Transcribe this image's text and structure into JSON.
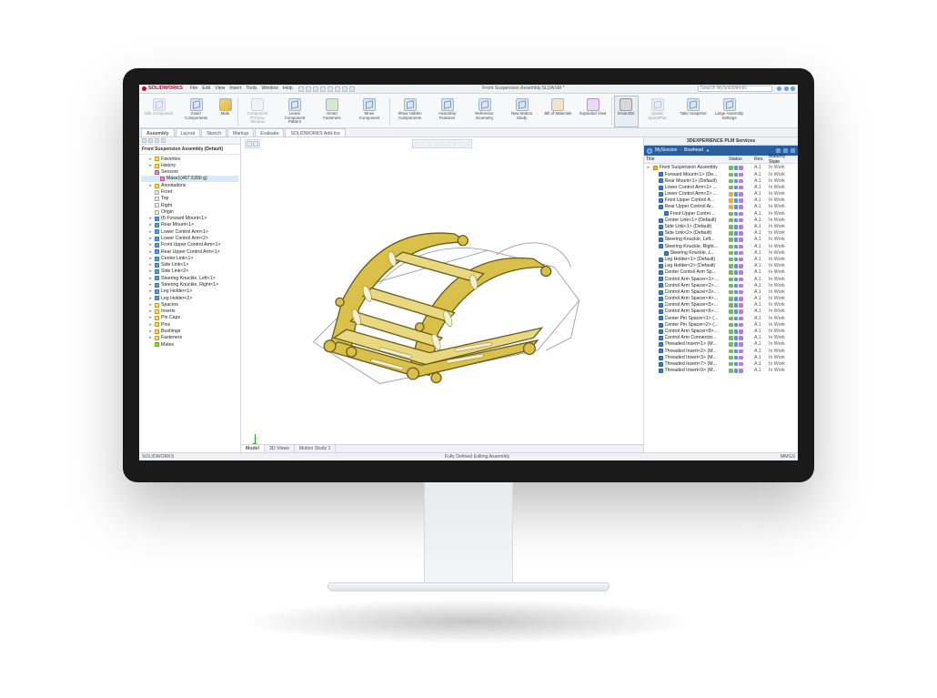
{
  "app": {
    "brand": "SOLIDWORKS",
    "document_title": "Front Suspension Assembly.SLDASM *",
    "search_placeholder": "Search MySolidWorks"
  },
  "menu": [
    "File",
    "Edit",
    "View",
    "Insert",
    "Tools",
    "Window",
    "Help"
  ],
  "ribbon": [
    {
      "label": "Edit Component",
      "icon": "cube",
      "disabled": true
    },
    {
      "label": "Insert Components",
      "icon": "cube"
    },
    {
      "label": "Mate",
      "icon": "mate"
    },
    {
      "label": "Component Preview Window",
      "icon": "preview",
      "disabled": true
    },
    {
      "label": "Linear Component Pattern",
      "icon": "cube"
    },
    {
      "label": "Smart Fasteners",
      "icon": "fastener"
    },
    {
      "label": "Move Component",
      "icon": "cube"
    },
    {
      "label": "Show Hidden Components",
      "icon": "cube"
    },
    {
      "label": "Assembly Features",
      "icon": "cube"
    },
    {
      "label": "Reference Geometry",
      "icon": "cube"
    },
    {
      "label": "New Motion Study",
      "icon": "cube"
    },
    {
      "label": "Bill of Materials",
      "icon": "bom"
    },
    {
      "label": "Exploded View",
      "icon": "exploded"
    },
    {
      "label": "Instant3D",
      "icon": "instant",
      "active": true
    },
    {
      "label": "Update SpeedPak",
      "icon": "cube",
      "disabled": true
    },
    {
      "label": "Take Snapshot",
      "icon": "cube"
    },
    {
      "label": "Large Assembly Settings",
      "icon": "cube"
    }
  ],
  "tabs": [
    "Assembly",
    "Layout",
    "Sketch",
    "Markup",
    "Evaluate",
    "SOLIDWORKS Add-Ins"
  ],
  "tabs_active": 0,
  "tree": {
    "root": "Front Suspension Assembly (Default)",
    "items": [
      {
        "d": 1,
        "ico": "folder",
        "label": "Favorites"
      },
      {
        "d": 1,
        "ico": "folder",
        "label": "History"
      },
      {
        "d": 1,
        "ico": "sensor",
        "label": "Sensors"
      },
      {
        "d": 2,
        "ico": "sensor",
        "label": "Mass1(467.5390 g)",
        "sel": true
      },
      {
        "d": 1,
        "ico": "folder",
        "label": "Annotations"
      },
      {
        "d": 1,
        "ico": "plane",
        "label": "Front"
      },
      {
        "d": 1,
        "ico": "plane",
        "label": "Top"
      },
      {
        "d": 1,
        "ico": "plane",
        "label": "Right"
      },
      {
        "d": 1,
        "ico": "plane",
        "label": "Origin"
      },
      {
        "d": 1,
        "ico": "part",
        "label": "(f) Forward Mount<1>"
      },
      {
        "d": 1,
        "ico": "part",
        "label": "Rear Mount<1>"
      },
      {
        "d": 1,
        "ico": "part",
        "label": "Lower Control Arm<1>"
      },
      {
        "d": 1,
        "ico": "part",
        "label": "Lower Control Arm<2>"
      },
      {
        "d": 1,
        "ico": "part",
        "label": "Front Upper Control Arm<1>"
      },
      {
        "d": 1,
        "ico": "part",
        "label": "Rear Upper Control Arm<1>"
      },
      {
        "d": 1,
        "ico": "part",
        "label": "Center Link<1>"
      },
      {
        "d": 1,
        "ico": "part",
        "label": "Side Link<1>"
      },
      {
        "d": 1,
        "ico": "part",
        "label": "Side Link<2>"
      },
      {
        "d": 1,
        "ico": "part",
        "label": "Steering Knuckle, Left<1>"
      },
      {
        "d": 1,
        "ico": "part",
        "label": "Steering Knuckle, Right<1>"
      },
      {
        "d": 1,
        "ico": "part",
        "label": "Leg Holder<1>"
      },
      {
        "d": 1,
        "ico": "part",
        "label": "Leg Holder<2>"
      },
      {
        "d": 1,
        "ico": "folder",
        "label": "Spacers"
      },
      {
        "d": 1,
        "ico": "folder",
        "label": "Inserts"
      },
      {
        "d": 1,
        "ico": "folder",
        "label": "Pin Caps"
      },
      {
        "d": 1,
        "ico": "folder",
        "label": "Pins"
      },
      {
        "d": 1,
        "ico": "folder",
        "label": "Bushings"
      },
      {
        "d": 1,
        "ico": "folder",
        "label": "Fasteners"
      },
      {
        "d": 1,
        "ico": "mate",
        "label": "Mates"
      }
    ]
  },
  "bottom_tabs": [
    "Model",
    "3D Views",
    "Motion Study 1"
  ],
  "bottom_tabs_active": 0,
  "plm": {
    "panel_title": "3DEXPERIENCE PLM Services",
    "session_prefix": "MySession",
    "session_name": "Bowhead",
    "columns": [
      "Title",
      "Status",
      "Rev.",
      "Maturity State"
    ],
    "rows": [
      {
        "d": 0,
        "label": "Front Suspension Assembly",
        "ico": "asm",
        "rev": "A.1",
        "mat": "In Work",
        "stat": [
          "g",
          "b"
        ]
      },
      {
        "d": 1,
        "label": "Forward Mount<1> (De...",
        "rev": "A.1",
        "mat": "In Work",
        "stat": [
          "g",
          "b"
        ]
      },
      {
        "d": 1,
        "label": "Rear Mount<1> (Default)",
        "rev": "A.1",
        "mat": "In Work",
        "stat": [
          "g",
          "b"
        ]
      },
      {
        "d": 1,
        "label": "Lower Control Arm<1> ...",
        "rev": "A.1",
        "mat": "In Work",
        "stat": [
          "g",
          "b"
        ]
      },
      {
        "d": 1,
        "label": "Lower Control Arm<2> ...",
        "rev": "A.1",
        "mat": "In Work",
        "stat": [
          "o",
          "b"
        ]
      },
      {
        "d": 1,
        "label": "Front Upper Control A...",
        "rev": "A.1",
        "mat": "In Work",
        "stat": [
          "o",
          "b"
        ]
      },
      {
        "d": 1,
        "label": "Rear Upper Control Ar...",
        "rev": "A.1",
        "mat": "In Work",
        "stat": [
          "o",
          "b"
        ]
      },
      {
        "d": 2,
        "label": "Front Upper Contro...",
        "rev": "A.1",
        "mat": "In Work",
        "stat": [
          "g",
          "b"
        ]
      },
      {
        "d": 1,
        "label": "Center Link<1> (Default)",
        "rev": "A.1",
        "mat": "In Work",
        "stat": [
          "g",
          "b"
        ]
      },
      {
        "d": 1,
        "label": "Side Link<1> (Default)",
        "rev": "A.1",
        "mat": "In Work",
        "stat": [
          "g",
          "b"
        ]
      },
      {
        "d": 1,
        "label": "Side Link<2> (Default)",
        "rev": "A.1",
        "mat": "In Work",
        "stat": [
          "g",
          "b"
        ]
      },
      {
        "d": 1,
        "label": "Steering Knuckle, Left...",
        "rev": "A.1",
        "mat": "In Work",
        "stat": [
          "g",
          "b"
        ]
      },
      {
        "d": 1,
        "label": "Steering Knuckle, Right...",
        "rev": "A.1",
        "mat": "In Work",
        "stat": [
          "g",
          "b"
        ]
      },
      {
        "d": 2,
        "label": "Steering Knuckle, L...",
        "rev": "A.1",
        "mat": "In Work",
        "stat": [
          "g",
          "b"
        ]
      },
      {
        "d": 1,
        "label": "Leg Holder<1> (Default)",
        "rev": "A.1",
        "mat": "In Work",
        "stat": [
          "g",
          "b"
        ]
      },
      {
        "d": 1,
        "label": "Leg Holder<2> (Default)",
        "rev": "A.1",
        "mat": "In Work",
        "stat": [
          "g",
          "b"
        ]
      },
      {
        "d": 1,
        "label": "Center Control Arm Sp...",
        "rev": "A.1",
        "mat": "In Work",
        "stat": [
          "g",
          "b"
        ]
      },
      {
        "d": 1,
        "label": "Control Arm Spacer<1>...",
        "rev": "A.1",
        "mat": "In Work",
        "stat": [
          "g",
          "b"
        ]
      },
      {
        "d": 1,
        "label": "Control Arm Spacer<2>...",
        "rev": "A.1",
        "mat": "In Work",
        "stat": [
          "g",
          "b"
        ]
      },
      {
        "d": 1,
        "label": "Control Arm Spacer<3>...",
        "rev": "A.1",
        "mat": "In Work",
        "stat": [
          "g",
          "b"
        ]
      },
      {
        "d": 1,
        "label": "Control Arm Spacer<4>...",
        "rev": "A.1",
        "mat": "In Work",
        "stat": [
          "g",
          "b"
        ]
      },
      {
        "d": 1,
        "label": "Control Arm Spacer<5>...",
        "rev": "A.1",
        "mat": "In Work",
        "stat": [
          "g",
          "b"
        ]
      },
      {
        "d": 1,
        "label": "Control Arm Spacer<6>...",
        "rev": "A.1",
        "mat": "In Work",
        "stat": [
          "g",
          "b"
        ]
      },
      {
        "d": 1,
        "label": "Center Pin Spacer<1> (...",
        "rev": "A.1",
        "mat": "In Work",
        "stat": [
          "g",
          "b"
        ]
      },
      {
        "d": 1,
        "label": "Center Pin Spacer<2> (...",
        "rev": "A.1",
        "mat": "In Work",
        "stat": [
          "g",
          "b"
        ]
      },
      {
        "d": 1,
        "label": "Control Arm Spacer<8>...",
        "rev": "A.1",
        "mat": "In Work",
        "stat": [
          "g",
          "b"
        ]
      },
      {
        "d": 1,
        "label": "Control Arm Connector...",
        "rev": "A.1",
        "mat": "In Work",
        "stat": [
          "g",
          "b"
        ]
      },
      {
        "d": 1,
        "label": "Threaded Insert<1> (M...",
        "rev": "A.1",
        "mat": "In Work",
        "stat": [
          "g",
          "b"
        ]
      },
      {
        "d": 1,
        "label": "Threaded Insert<2> (M...",
        "rev": "A.1",
        "mat": "In Work",
        "stat": [
          "g",
          "b"
        ]
      },
      {
        "d": 1,
        "label": "Threaded Insert<3> (M...",
        "rev": "A.1",
        "mat": "In Work",
        "stat": [
          "g",
          "b"
        ]
      },
      {
        "d": 1,
        "label": "Threaded Insert<7> (M...",
        "rev": "A.1",
        "mat": "In Work",
        "stat": [
          "g",
          "b"
        ]
      },
      {
        "d": 1,
        "label": "Threaded Insert<9> (M...",
        "rev": "A.1",
        "mat": "In Work",
        "stat": [
          "g",
          "b"
        ]
      }
    ]
  },
  "status": {
    "left": "SOLIDWORKS",
    "center": "Fully Defined   Editing Assembly",
    "right": "MMGS"
  },
  "model_style": {
    "stroke_dark": "#6a5a18",
    "fill_gold": "#d8c04a",
    "fill_gold_light": "#e8d882",
    "stroke_grey": "#9aa0a5",
    "background": "#ffffff"
  }
}
